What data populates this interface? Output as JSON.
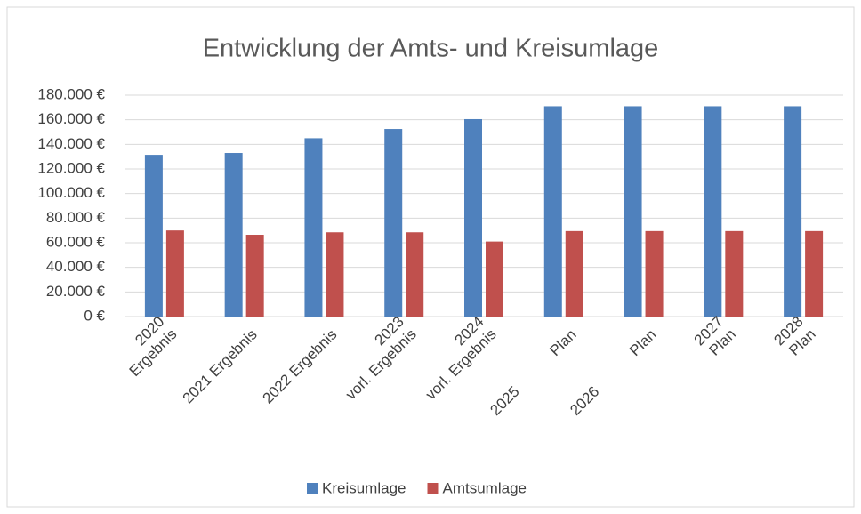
{
  "chart_data": {
    "type": "bar",
    "title": "Entwicklung der Amts- und Kreisumlage",
    "categories": [
      "2020\nErgebnis",
      "2021 Ergebnis",
      "2022 Ergebnis",
      "2023\nvorl. Ergebnis",
      "2024\nvorl. Ergebnis",
      "2025            Plan",
      "2026            Plan",
      "2027\nPlan",
      "2028\nPlan"
    ],
    "series": [
      {
        "name": "Kreisumlage",
        "color": "#4f81bd",
        "values": [
          131500,
          133000,
          145000,
          152500,
          160500,
          171000,
          171000,
          171000,
          171000
        ]
      },
      {
        "name": "Amtsumlage",
        "color": "#c0504d",
        "values": [
          70000,
          66500,
          68500,
          68500,
          61000,
          69500,
          69500,
          69500,
          69500
        ]
      }
    ],
    "ylim": [
      0,
      180000
    ],
    "yticks": [
      {
        "value": 0,
        "label": "0 €"
      },
      {
        "value": 20000,
        "label": "20.000 €"
      },
      {
        "value": 40000,
        "label": "40.000 €"
      },
      {
        "value": 60000,
        "label": "60.000 €"
      },
      {
        "value": 80000,
        "label": "80.000 €"
      },
      {
        "value": 100000,
        "label": "100.000 €"
      },
      {
        "value": 120000,
        "label": "120.000 €"
      },
      {
        "value": 140000,
        "label": "140.000 €"
      },
      {
        "value": 160000,
        "label": "160.000 €"
      },
      {
        "value": 180000,
        "label": "180.000 €"
      }
    ],
    "grid": true,
    "legend": "bottom"
  }
}
